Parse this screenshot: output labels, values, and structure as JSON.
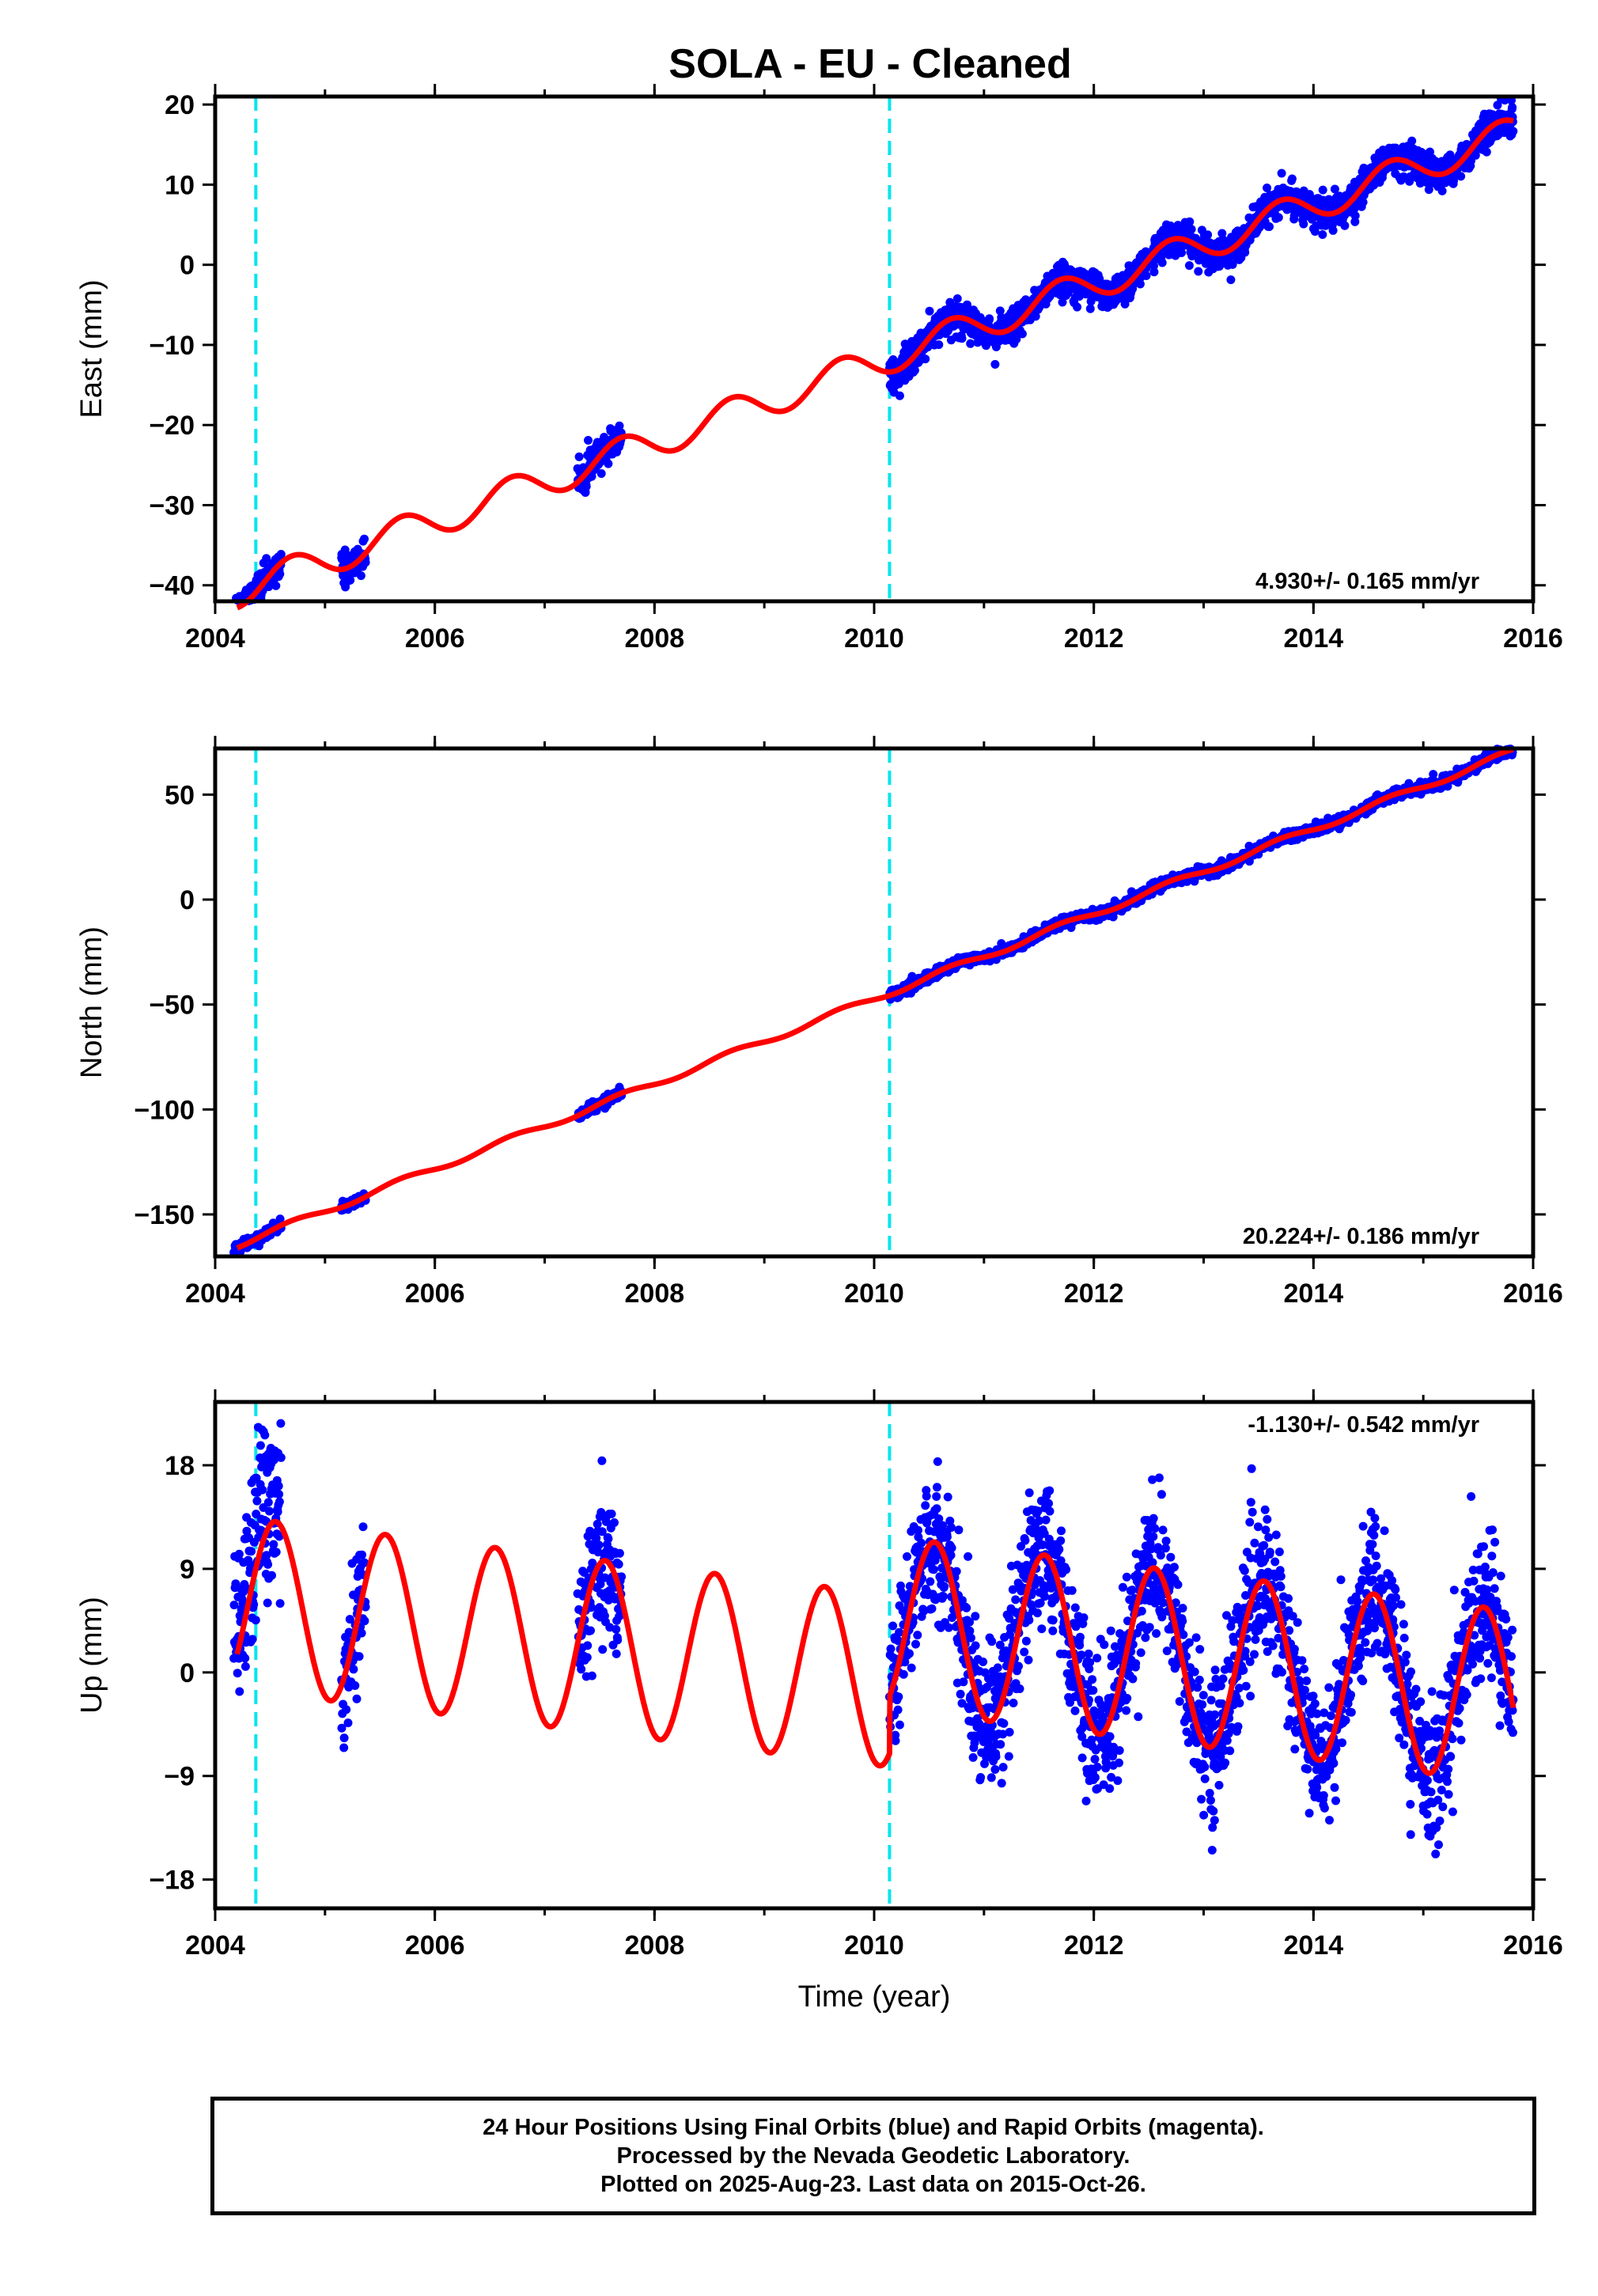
{
  "title": "SOLA  - EU - Cleaned",
  "colors": {
    "data": "#0000ff",
    "model": "#ff0000",
    "event": "#00e5ee",
    "frame": "#000000"
  },
  "footer": {
    "line1": "24 Hour Positions Using Final Orbits (blue) and Rapid Orbits (magenta).",
    "line2": "Processed by the Nevada Geodetic Laboratory.",
    "line3": "Plotted on 2025-Aug-23. Last data on 2015-Oct-26."
  },
  "chart_data": [
    {
      "type": "scatter",
      "component": "east",
      "ylabel": "East (mm)",
      "xlabel": "",
      "xlim": [
        2004.0,
        2016.0
      ],
      "ylim": [
        -42,
        21
      ],
      "xticks": [
        2004,
        2006,
        2008,
        2010,
        2012,
        2014,
        2016
      ],
      "yticks": [
        -40,
        -30,
        -20,
        -10,
        0,
        10,
        20
      ],
      "rate_label": "4.930+/- 0.165 mm/yr",
      "rate": 4.93,
      "event_lines": [
        2004.37,
        2010.14
      ],
      "data_segments": [
        [
          2004.17,
          2004.6
        ],
        [
          2005.15,
          2005.37
        ],
        [
          2007.3,
          2007.7
        ],
        [
          2010.14,
          2015.82
        ]
      ],
      "model": {
        "offset_at_2004_2": -40.8,
        "jump_at_2010_14": 0.0,
        "annual_amp": 2.0,
        "annual_phase": 0.45,
        "amp_trend": 0.0
      }
    },
    {
      "type": "scatter",
      "component": "north",
      "ylabel": "North (mm)",
      "xlabel": "",
      "xlim": [
        2004.0,
        2016.0
      ],
      "ylim": [
        -170,
        72
      ],
      "xticks": [
        2004,
        2006,
        2008,
        2010,
        2012,
        2014,
        2016
      ],
      "yticks": [
        -150,
        -100,
        -50,
        0,
        50
      ],
      "rate_label": "20.224+/- 0.186 mm/yr",
      "rate": 20.224,
      "event_lines": [
        2004.37,
        2010.14
      ],
      "data_segments": [
        [
          2004.17,
          2004.6
        ],
        [
          2005.15,
          2005.37
        ],
        [
          2007.3,
          2007.7
        ],
        [
          2010.14,
          2015.82
        ]
      ],
      "model": {
        "offset_at_2004_2": -164.5,
        "jump_at_2010_14": 0.0,
        "annual_amp": 1.5,
        "annual_phase": 0.45,
        "amp_trend": 0.0
      }
    },
    {
      "type": "scatter",
      "component": "up",
      "ylabel": "Up (mm)",
      "xlabel": "Time (year)",
      "xlim": [
        2004.0,
        2016.0
      ],
      "ylim": [
        -20.5,
        23.5
      ],
      "xticks": [
        2004,
        2006,
        2008,
        2010,
        2012,
        2014,
        2016
      ],
      "yticks": [
        -18,
        -9,
        0,
        9,
        18
      ],
      "rate_label": "-1.130+/- 0.542 mm/yr",
      "rate": -1.13,
      "event_lines": [
        2004.37,
        2010.14
      ],
      "data_segments": [
        [
          2004.17,
          2004.6
        ],
        [
          2005.15,
          2005.37
        ],
        [
          2007.3,
          2007.7
        ],
        [
          2010.14,
          2015.82
        ]
      ],
      "model": {
        "offset_at_2004_2": 6.0,
        "jump_at_2010_14": 5.0,
        "annual_amp": 7.5,
        "annual_phase": 0.3,
        "amp_trend": 0.0
      }
    }
  ]
}
